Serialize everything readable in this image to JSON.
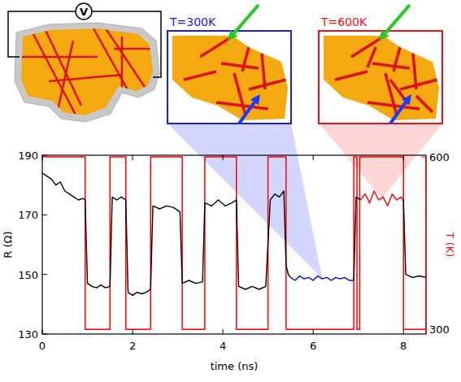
{
  "chart_data": {
    "type": "line",
    "xlabel": "time (ns)",
    "ylabel": "R (Ω)",
    "y2label": "T (K)",
    "annotations": [
      "V",
      "T=300K",
      "T=600K"
    ],
    "xlim": [
      0,
      8.5
    ],
    "xticks": [
      0,
      2,
      4,
      6,
      8
    ],
    "ylim": [
      130,
      190
    ],
    "yticks": [
      130,
      150,
      170,
      190
    ],
    "y2lim": [
      292,
      603
    ],
    "y2ticks": [
      300,
      600
    ],
    "series": [
      {
        "color": "#000000",
        "x": [
          0,
          0.1,
          0.2,
          0.3,
          0.4,
          0.5,
          0.6,
          0.7,
          0.8,
          0.9,
          0.95,
          1.0,
          1.1,
          1.2,
          1.3,
          1.4,
          1.5,
          1.55,
          1.65,
          1.75,
          1.85,
          1.9,
          2.0,
          2.1,
          2.2,
          2.3,
          2.4,
          2.45,
          2.6,
          2.75,
          2.9,
          3.05,
          3.1,
          3.25,
          3.4,
          3.55,
          3.6,
          3.75,
          3.9,
          4.05,
          4.2,
          4.3,
          4.35,
          4.5,
          4.65,
          4.8,
          4.95,
          5.05,
          5.15,
          5.25,
          5.35,
          5.4,
          5.45,
          5.5,
          6.0,
          6.9,
          6.95,
          7.05,
          7.5,
          8.0,
          8.05,
          8.2,
          8.35,
          8.5
        ],
        "values": [
          184,
          183,
          182,
          180,
          181,
          178,
          177,
          176,
          175,
          175.5,
          175,
          147,
          146,
          145.5,
          146.5,
          145.5,
          146,
          176,
          175,
          176,
          175,
          144,
          143,
          144,
          143.5,
          144,
          145,
          173,
          172,
          173,
          172.5,
          171,
          147,
          148,
          147,
          147.5,
          174,
          173,
          175,
          173,
          174,
          175,
          146,
          145,
          146,
          145,
          146,
          175,
          177,
          176,
          178,
          153,
          150,
          149,
          null,
          148,
          176,
          175,
          null,
          175,
          150,
          149,
          149.5,
          149
        ]
      },
      {
        "color": "#0000ff",
        "x": [
          5.5,
          5.6,
          5.7,
          5.8,
          5.9,
          6.0,
          6.1,
          6.2,
          6.3,
          6.4,
          6.5,
          6.6,
          6.7,
          6.8,
          6.9
        ],
        "values": [
          149,
          148,
          149.5,
          148.5,
          149,
          148,
          149.5,
          148.5,
          149,
          148,
          149,
          148.5,
          149,
          148,
          148
        ]
      },
      {
        "color": "#ff0000",
        "x": [
          7.05,
          7.15,
          7.25,
          7.35,
          7.45,
          7.55,
          7.65,
          7.75,
          7.85,
          7.95,
          8.0
        ],
        "values": [
          175,
          177,
          174,
          178,
          175,
          176,
          173,
          177,
          175,
          176,
          175
        ]
      },
      {
        "color": "#ff0000",
        "axis": "y2",
        "x": [
          0,
          0.95,
          0.95,
          1.5,
          1.5,
          1.85,
          1.85,
          2.4,
          2.4,
          3.1,
          3.1,
          3.6,
          3.6,
          4.3,
          4.3,
          5.0,
          5.0,
          5.4,
          5.4,
          6.9,
          6.9,
          6.97,
          6.97,
          7.03,
          7.03,
          8.0,
          8.0,
          8.5
        ],
        "values": [
          600,
          600,
          300,
          300,
          600,
          600,
          300,
          300,
          600,
          600,
          300,
          300,
          600,
          600,
          300,
          300,
          600,
          600,
          300,
          300,
          600,
          600,
          300,
          300,
          600,
          600,
          300,
          300
        ]
      }
    ]
  }
}
